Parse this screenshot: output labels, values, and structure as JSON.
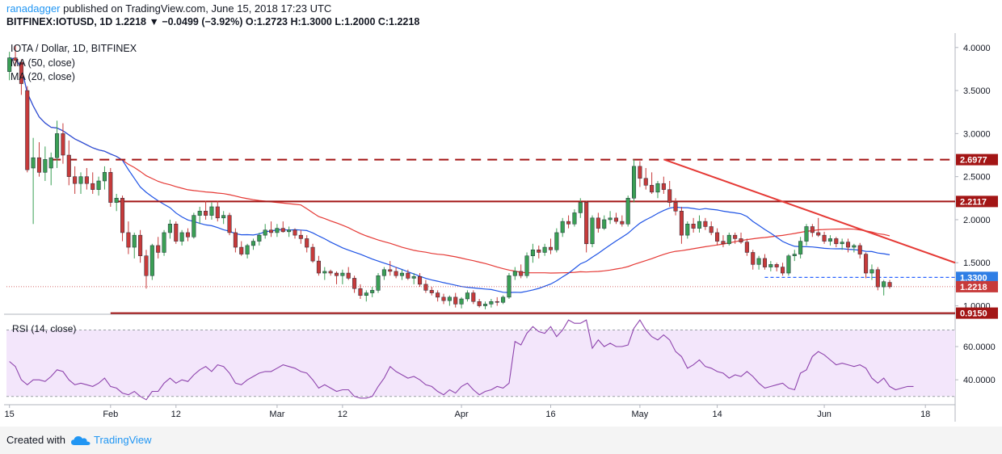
{
  "header": {
    "author": "ranadagger",
    "published": "published on TradingView.com, June 15, 2018 17:23 UTC",
    "symbol": "BITFINEX:IOTUSD, 1D",
    "price": "1.2218",
    "change": "▼ −0.0499 (−3.92%)",
    "ohlc": "O:1.2723 H:1.3000 L:1.2000 C:1.2218"
  },
  "footer": {
    "created_with": "Created with",
    "brand": "TradingView"
  },
  "colors": {
    "up": "#3a9f54",
    "down": "#c73a3a",
    "sma50": "#e53935",
    "sma20": "#1e53e5",
    "rsi": "#8e44ad",
    "rsi_band": "#f3e6fb",
    "level_line": "#a31515",
    "dashed_blue": "#2962ff",
    "price_label": "#c73a3a",
    "label_blue": "#2f7ee5"
  },
  "chart_data": [
    {
      "type": "candlestick",
      "title": "IOTA / Dollar, 1D, BITFINEX",
      "indicators": [
        "MA (50, close)",
        "MA (20, close)"
      ],
      "y_axis": {
        "range": [
          0.93,
          4.12
        ],
        "ticks": [
          1.0,
          1.5,
          2.0,
          2.5,
          3.0,
          3.5,
          4.0
        ],
        "tick_labels": [
          "1.0000",
          "1.5000",
          "2.0000",
          "2.5000",
          "3.0000",
          "3.5000",
          "4.0000"
        ]
      },
      "x_axis": {
        "day_range": [
          -0.5,
          159
        ],
        "ticks": [
          {
            "day": 0,
            "label": "15"
          },
          {
            "day": 17,
            "label": "Feb"
          },
          {
            "day": 28,
            "label": "12"
          },
          {
            "day": 45,
            "label": "Mar"
          },
          {
            "day": 56,
            "label": "12"
          },
          {
            "day": 76,
            "label": "Apr"
          },
          {
            "day": 91,
            "label": "16"
          },
          {
            "day": 106,
            "label": "May"
          },
          {
            "day": 119,
            "label": "14"
          },
          {
            "day": 137,
            "label": "Jun"
          },
          {
            "day": 154,
            "label": "18"
          }
        ]
      },
      "candles_ohlc": [
        [
          3.72,
          3.95,
          3.62,
          3.88
        ],
        [
          3.88,
          4.02,
          3.78,
          3.85
        ],
        [
          3.83,
          3.86,
          3.45,
          3.58
        ],
        [
          3.5,
          3.55,
          2.55,
          2.58
        ],
        [
          2.6,
          2.95,
          1.95,
          2.72
        ],
        [
          2.72,
          2.9,
          2.5,
          2.55
        ],
        [
          2.55,
          2.85,
          2.45,
          2.7
        ],
        [
          2.6,
          2.78,
          2.4,
          2.72
        ],
        [
          2.72,
          3.15,
          2.6,
          3.0
        ],
        [
          3.0,
          3.12,
          2.65,
          2.75
        ],
        [
          2.75,
          2.92,
          2.4,
          2.5
        ],
        [
          2.5,
          2.62,
          2.3,
          2.42
        ],
        [
          2.42,
          2.55,
          2.3,
          2.5
        ],
        [
          2.5,
          2.6,
          2.35,
          2.42
        ],
        [
          2.42,
          2.55,
          2.3,
          2.35
        ],
        [
          2.35,
          2.5,
          2.28,
          2.45
        ],
        [
          2.45,
          2.62,
          2.35,
          2.55
        ],
        [
          2.55,
          2.6,
          2.15,
          2.2
        ],
        [
          2.2,
          2.3,
          2.1,
          2.25
        ],
        [
          2.25,
          2.28,
          1.75,
          1.85
        ],
        [
          1.85,
          1.98,
          1.6,
          1.68
        ],
        [
          1.68,
          1.85,
          1.55,
          1.82
        ],
        [
          1.82,
          1.88,
          1.5,
          1.58
        ],
        [
          1.58,
          1.65,
          1.2,
          1.35
        ],
        [
          1.35,
          1.72,
          1.3,
          1.7
        ],
        [
          1.7,
          1.8,
          1.55,
          1.62
        ],
        [
          1.62,
          1.88,
          1.58,
          1.85
        ],
        [
          1.85,
          2.0,
          1.78,
          1.95
        ],
        [
          1.95,
          1.98,
          1.72,
          1.75
        ],
        [
          1.75,
          1.88,
          1.7,
          1.85
        ],
        [
          1.85,
          1.9,
          1.75,
          1.8
        ],
        [
          1.8,
          2.08,
          1.78,
          2.05
        ],
        [
          2.05,
          2.15,
          1.95,
          2.1
        ],
        [
          2.1,
          2.22,
          2.0,
          2.05
        ],
        [
          2.05,
          2.2,
          2.0,
          2.15
        ],
        [
          2.15,
          2.22,
          1.98,
          2.02
        ],
        [
          2.02,
          2.1,
          1.95,
          2.05
        ],
        [
          2.05,
          2.08,
          1.82,
          1.85
        ],
        [
          1.85,
          1.9,
          1.62,
          1.68
        ],
        [
          1.68,
          1.75,
          1.58,
          1.6
        ],
        [
          1.6,
          1.72,
          1.55,
          1.7
        ],
        [
          1.7,
          1.78,
          1.65,
          1.75
        ],
        [
          1.75,
          1.85,
          1.7,
          1.82
        ],
        [
          1.82,
          1.95,
          1.78,
          1.88
        ],
        [
          1.88,
          1.98,
          1.8,
          1.85
        ],
        [
          1.85,
          1.95,
          1.8,
          1.9
        ],
        [
          1.9,
          1.98,
          1.85,
          1.86
        ],
        [
          1.86,
          1.92,
          1.8,
          1.88
        ],
        [
          1.88,
          1.9,
          1.78,
          1.82
        ],
        [
          1.82,
          1.88,
          1.72,
          1.78
        ],
        [
          1.78,
          1.82,
          1.62,
          1.68
        ],
        [
          1.68,
          1.72,
          1.5,
          1.52
        ],
        [
          1.52,
          1.58,
          1.35,
          1.38
        ],
        [
          1.38,
          1.45,
          1.3,
          1.4
        ],
        [
          1.4,
          1.42,
          1.35,
          1.38
        ],
        [
          1.38,
          1.4,
          1.25,
          1.35
        ],
        [
          1.35,
          1.42,
          1.25,
          1.38
        ],
        [
          1.38,
          1.45,
          1.3,
          1.32
        ],
        [
          1.32,
          1.35,
          1.15,
          1.2
        ],
        [
          1.2,
          1.25,
          1.08,
          1.12
        ],
        [
          1.12,
          1.18,
          1.05,
          1.15
        ],
        [
          1.15,
          1.22,
          1.1,
          1.18
        ],
        [
          1.18,
          1.38,
          1.15,
          1.35
        ],
        [
          1.35,
          1.45,
          1.3,
          1.42
        ],
        [
          1.42,
          1.52,
          1.35,
          1.4
        ],
        [
          1.4,
          1.45,
          1.32,
          1.35
        ],
        [
          1.35,
          1.42,
          1.3,
          1.38
        ],
        [
          1.38,
          1.42,
          1.3,
          1.32
        ],
        [
          1.32,
          1.38,
          1.25,
          1.34
        ],
        [
          1.34,
          1.38,
          1.22,
          1.25
        ],
        [
          1.25,
          1.3,
          1.15,
          1.18
        ],
        [
          1.18,
          1.22,
          1.12,
          1.15
        ],
        [
          1.15,
          1.18,
          1.05,
          1.1
        ],
        [
          1.1,
          1.14,
          1.02,
          1.06
        ],
        [
          1.06,
          1.12,
          1.0,
          1.1
        ],
        [
          1.1,
          1.15,
          0.98,
          1.02
        ],
        [
          1.02,
          1.1,
          0.97,
          1.08
        ],
        [
          1.08,
          1.18,
          1.05,
          1.15
        ],
        [
          1.15,
          1.18,
          1.02,
          1.05
        ],
        [
          1.05,
          1.08,
          0.98,
          1.0
        ],
        [
          1.0,
          1.05,
          0.96,
          1.02
        ],
        [
          1.02,
          1.08,
          0.98,
          1.05
        ],
        [
          1.05,
          1.1,
          1.0,
          1.04
        ],
        [
          1.04,
          1.12,
          1.02,
          1.1
        ],
        [
          1.1,
          1.38,
          1.08,
          1.35
        ],
        [
          1.35,
          1.45,
          1.3,
          1.4
        ],
        [
          1.4,
          1.48,
          1.32,
          1.35
        ],
        [
          1.35,
          1.62,
          1.32,
          1.58
        ],
        [
          1.58,
          1.72,
          1.5,
          1.65
        ],
        [
          1.65,
          1.7,
          1.55,
          1.62
        ],
        [
          1.62,
          1.72,
          1.58,
          1.68
        ],
        [
          1.68,
          1.78,
          1.6,
          1.65
        ],
        [
          1.65,
          1.9,
          1.62,
          1.85
        ],
        [
          1.85,
          2.02,
          1.8,
          1.98
        ],
        [
          1.98,
          2.05,
          1.9,
          1.95
        ],
        [
          1.95,
          2.12,
          1.92,
          2.08
        ],
        [
          2.08,
          2.25,
          2.02,
          2.2
        ],
        [
          2.2,
          2.22,
          1.62,
          1.72
        ],
        [
          1.72,
          2.05,
          1.68,
          2.02
        ],
        [
          2.02,
          2.08,
          1.85,
          1.9
        ],
        [
          1.9,
          2.05,
          1.88,
          2.0
        ],
        [
          2.0,
          2.1,
          1.95,
          2.02
        ],
        [
          2.02,
          2.08,
          1.95,
          1.98
        ],
        [
          1.98,
          2.05,
          1.92,
          1.95
        ],
        [
          1.95,
          2.28,
          1.92,
          2.25
        ],
        [
          2.25,
          2.7,
          2.2,
          2.62
        ],
        [
          2.62,
          2.68,
          2.38,
          2.48
        ],
        [
          2.48,
          2.6,
          2.35,
          2.4
        ],
        [
          2.4,
          2.55,
          2.3,
          2.32
        ],
        [
          2.32,
          2.45,
          2.25,
          2.42
        ],
        [
          2.42,
          2.5,
          2.3,
          2.35
        ],
        [
          2.35,
          2.45,
          2.15,
          2.2
        ],
        [
          2.2,
          2.25,
          2.05,
          2.1
        ],
        [
          2.1,
          2.15,
          1.72,
          1.82
        ],
        [
          1.82,
          1.98,
          1.78,
          1.95
        ],
        [
          1.95,
          2.02,
          1.85,
          1.9
        ],
        [
          1.9,
          2.05,
          1.85,
          1.98
        ],
        [
          1.98,
          2.02,
          1.88,
          1.92
        ],
        [
          1.92,
          1.98,
          1.82,
          1.85
        ],
        [
          1.85,
          1.9,
          1.7,
          1.75
        ],
        [
          1.75,
          1.82,
          1.68,
          1.72
        ],
        [
          1.72,
          1.85,
          1.7,
          1.82
        ],
        [
          1.82,
          1.85,
          1.72,
          1.78
        ],
        [
          1.78,
          1.85,
          1.72,
          1.74
        ],
        [
          1.74,
          1.78,
          1.58,
          1.62
        ],
        [
          1.62,
          1.65,
          1.42,
          1.48
        ],
        [
          1.48,
          1.58,
          1.42,
          1.55
        ],
        [
          1.55,
          1.6,
          1.42,
          1.45
        ],
        [
          1.45,
          1.52,
          1.4,
          1.48
        ],
        [
          1.48,
          1.5,
          1.4,
          1.45
        ],
        [
          1.45,
          1.5,
          1.35,
          1.38
        ],
        [
          1.38,
          1.6,
          1.35,
          1.58
        ],
        [
          1.58,
          1.65,
          1.52,
          1.6
        ],
        [
          1.6,
          1.8,
          1.55,
          1.75
        ],
        [
          1.75,
          1.95,
          1.7,
          1.92
        ],
        [
          1.92,
          1.95,
          1.8,
          1.85
        ],
        [
          1.85,
          2.02,
          1.8,
          1.82
        ],
        [
          1.82,
          1.86,
          1.72,
          1.75
        ],
        [
          1.75,
          1.82,
          1.7,
          1.78
        ],
        [
          1.78,
          1.8,
          1.68,
          1.72
        ],
        [
          1.72,
          1.78,
          1.65,
          1.74
        ],
        [
          1.74,
          1.78,
          1.62,
          1.68
        ],
        [
          1.68,
          1.72,
          1.62,
          1.7
        ],
        [
          1.7,
          1.73,
          1.55,
          1.6
        ],
        [
          1.6,
          1.62,
          1.32,
          1.38
        ],
        [
          1.38,
          1.48,
          1.3,
          1.42
        ],
        [
          1.42,
          1.45,
          1.18,
          1.22
        ],
        [
          1.22,
          1.3,
          1.12,
          1.28
        ],
        [
          1.272,
          1.3,
          1.2,
          1.2218
        ]
      ],
      "levels": [
        {
          "label": "2.6977",
          "value": 2.6977,
          "style": "dashed",
          "start_day": 7
        },
        {
          "label": "2.2117",
          "value": 2.2117,
          "style": "solid",
          "start_day": 18
        },
        {
          "label": "0.9150",
          "value": 0.915,
          "style": "solid",
          "start_day": 17
        },
        {
          "label": "1.3300",
          "value": 1.33,
          "style": "dashed-blue",
          "start_day": 127
        }
      ],
      "trendline": {
        "start": [
          110,
          2.7
        ],
        "end": [
          159,
          1.5
        ]
      },
      "last_price_label": "1.2218"
    },
    {
      "type": "line",
      "title": "RSI (14, close)",
      "y_axis": {
        "range": [
          25,
          78
        ],
        "ticks": [
          40,
          60
        ],
        "tick_labels": [
          "40.0000",
          "60.0000"
        ]
      },
      "band": [
        30,
        70
      ],
      "values": [
        51,
        48,
        40,
        37,
        40,
        40,
        39,
        42,
        46,
        45,
        40,
        37,
        38,
        37,
        36,
        38,
        41,
        36,
        35,
        32,
        31,
        33,
        30,
        28,
        33,
        33,
        38,
        41,
        38,
        40,
        39,
        43,
        46,
        48,
        45,
        49,
        48,
        44,
        38,
        37,
        40,
        42,
        44,
        45,
        45,
        47,
        49,
        48,
        47,
        45,
        44,
        40,
        35,
        37,
        35,
        33,
        34,
        34,
        30,
        29,
        29,
        30,
        36,
        41,
        48,
        45,
        43,
        41,
        42,
        40,
        37,
        36,
        33,
        31,
        34,
        32,
        36,
        38,
        34,
        31,
        33,
        34,
        36,
        35,
        38,
        63,
        61,
        68,
        72,
        69,
        68,
        72,
        66,
        70,
        76,
        74,
        74,
        76,
        59,
        64,
        60,
        62,
        60,
        60,
        61,
        71,
        76,
        70,
        66,
        64,
        67,
        64,
        57,
        54,
        47,
        49,
        52,
        48,
        47,
        45,
        44,
        41,
        43,
        42,
        45,
        42,
        38,
        35,
        36,
        37,
        38,
        35,
        34,
        44,
        46,
        54,
        57,
        55,
        52,
        49,
        50,
        49,
        48,
        49,
        47,
        41,
        38,
        41,
        36,
        34,
        35,
        36,
        36
      ]
    }
  ]
}
